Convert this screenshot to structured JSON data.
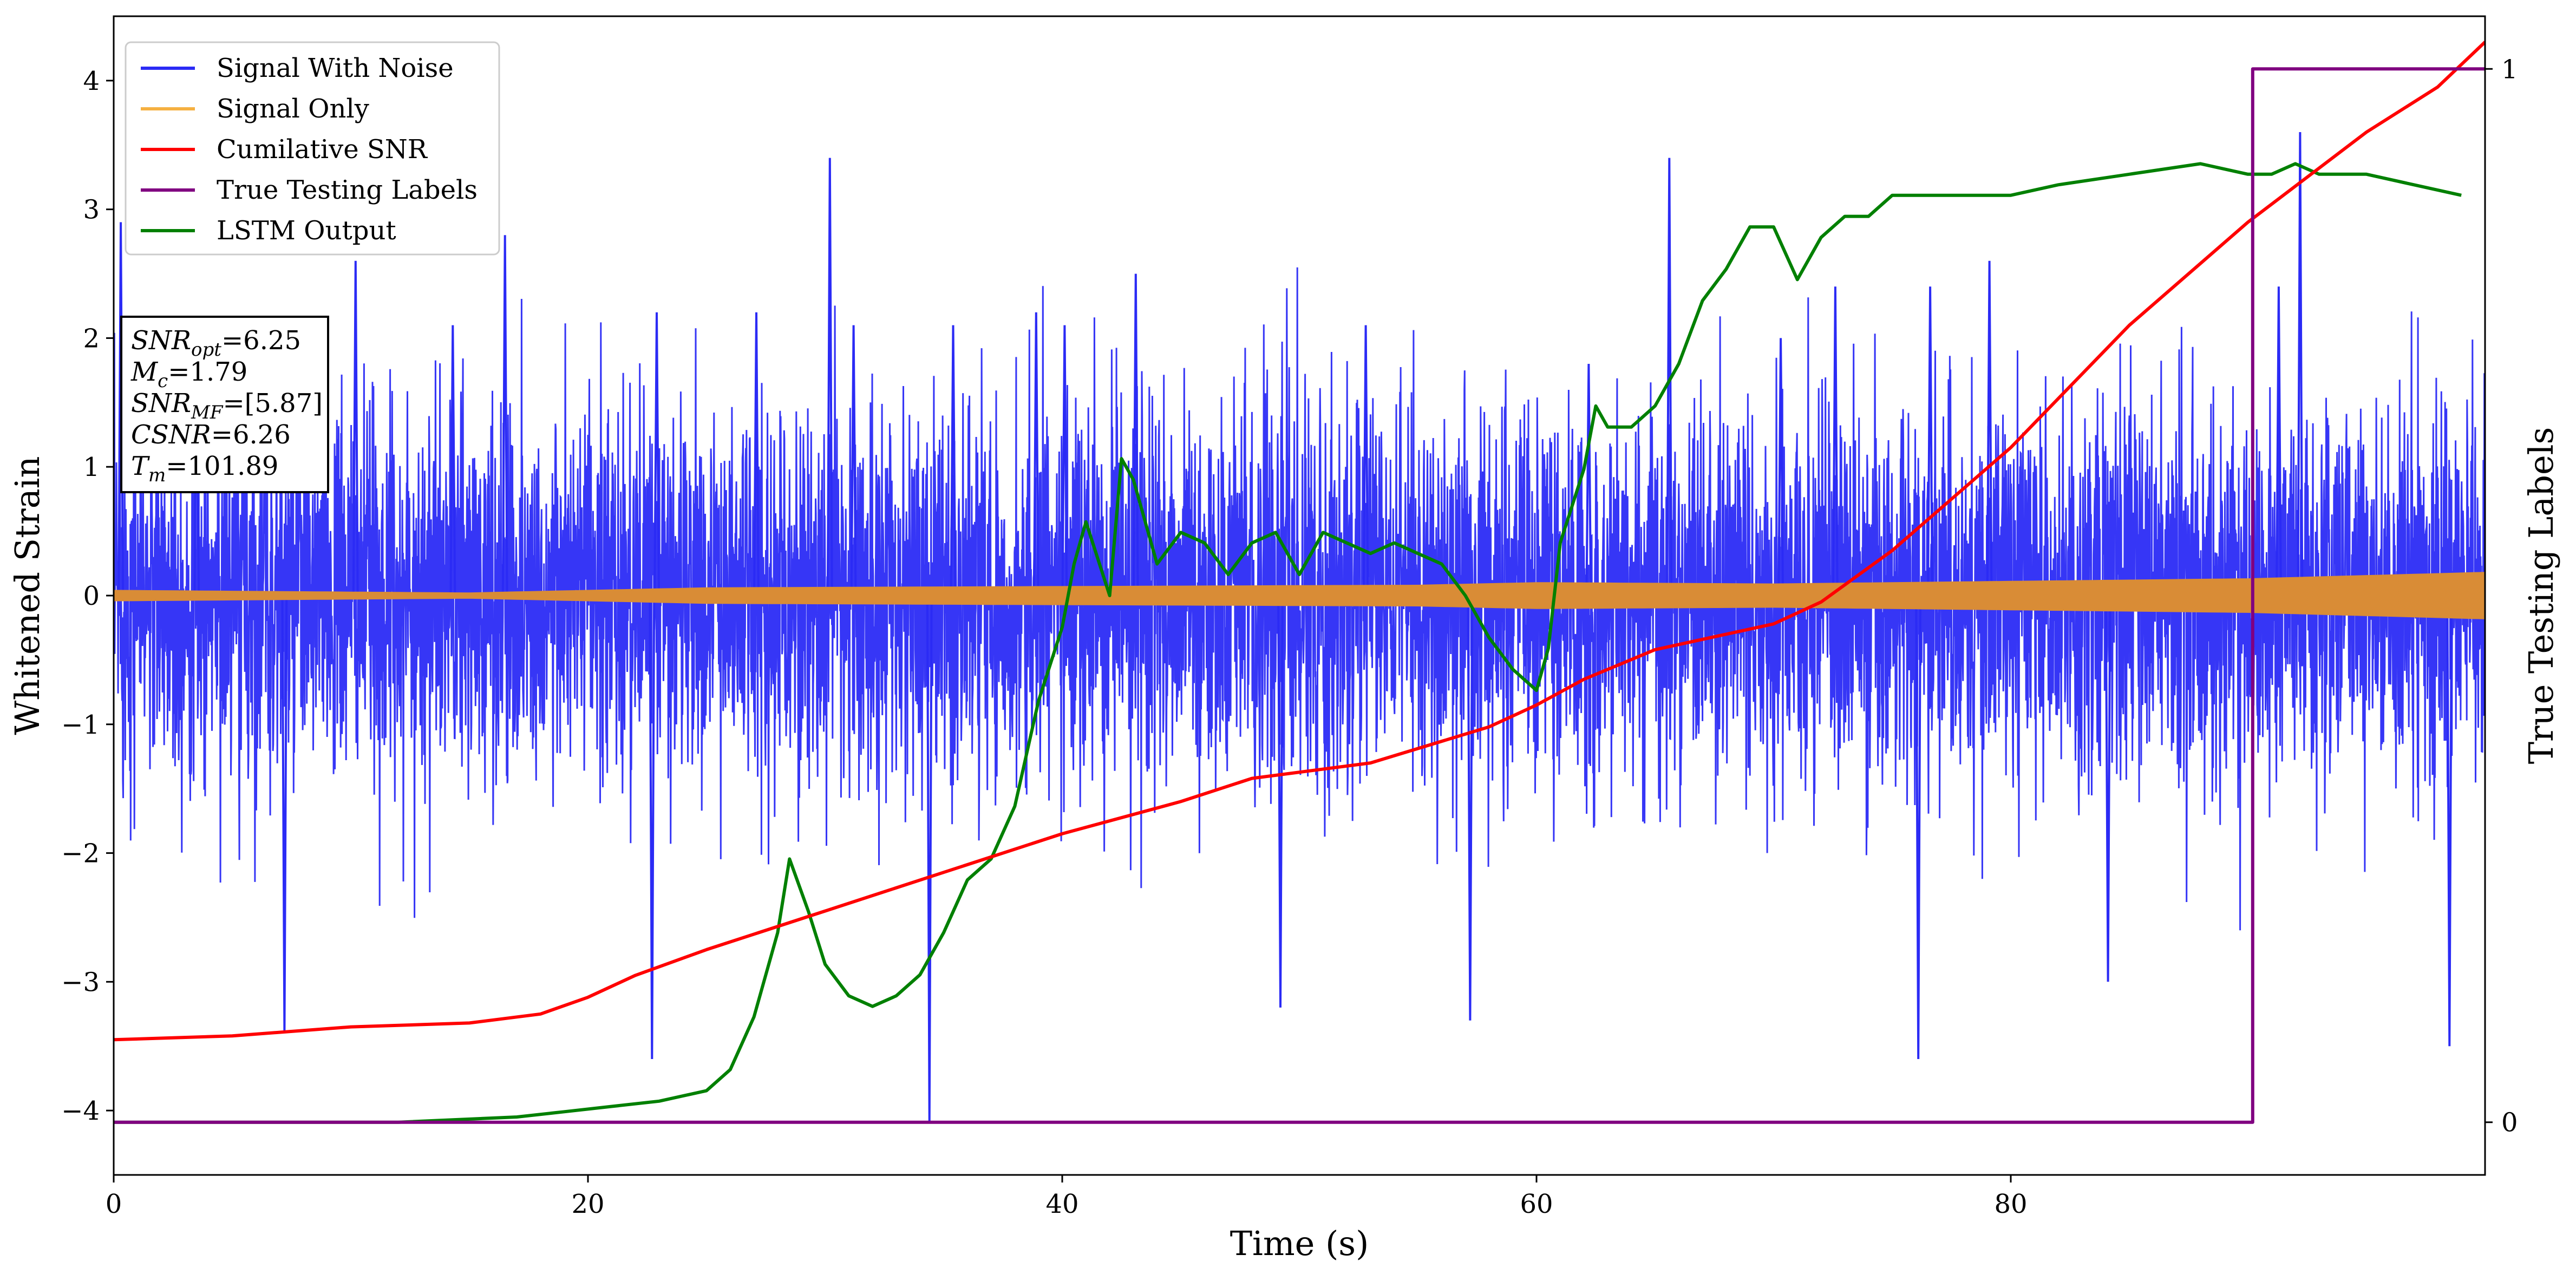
{
  "chart_data": {
    "type": "line",
    "xlabel": "Time (s)",
    "ylabel": "Whitened Strain",
    "y2label": "True Testing Labels",
    "xlim": [
      0,
      100
    ],
    "ylim": [
      -4.5,
      4.5
    ],
    "y2lim": [
      -0.05,
      1.05
    ],
    "x_ticks": [
      0,
      20,
      40,
      60,
      80
    ],
    "y_ticks": [
      -4,
      -3,
      -2,
      -1,
      0,
      1,
      2,
      3,
      4
    ],
    "y2_ticks": [
      0,
      1
    ],
    "legend_position": "upper-left",
    "legend": [
      "Signal With Noise",
      "Signal Only",
      "Cumilative SNR",
      "True Testing Labels",
      "LSTM Output"
    ],
    "annotation": {
      "lines": [
        {
          "name": "SNR",
          "sub": "opt",
          "value": "=6.25"
        },
        {
          "name": "M",
          "sub": "c",
          "value": "=1.79"
        },
        {
          "name": "SNR",
          "sub": "MF",
          "value": "=[5.87]"
        },
        {
          "name": "CSNR",
          "sub": "",
          "value": "=6.26"
        },
        {
          "name": "T",
          "sub": "m",
          "value": "=101.89"
        }
      ]
    },
    "series": [
      {
        "name": "Signal With Noise",
        "color": "#2b2bf5",
        "axis": "left",
        "kind": "noise",
        "std": 0.72,
        "peaks": [
          [
            0.3,
            2.9
          ],
          [
            3.5,
            2.0
          ],
          [
            7.2,
            -3.4
          ],
          [
            10.2,
            2.6
          ],
          [
            14.3,
            2.1
          ],
          [
            16.5,
            2.8
          ],
          [
            22.7,
            -3.6
          ],
          [
            22.9,
            2.2
          ],
          [
            27.1,
            2.2
          ],
          [
            30.2,
            3.4
          ],
          [
            31.2,
            2.1
          ],
          [
            34.4,
            -4.1
          ],
          [
            35.4,
            2.1
          ],
          [
            38.9,
            2.2
          ],
          [
            40.1,
            2.1
          ],
          [
            43.1,
            2.5
          ],
          [
            49.2,
            -3.2
          ],
          [
            52.8,
            2.1
          ],
          [
            57.2,
            -3.3
          ],
          [
            62.2,
            1.8
          ],
          [
            65.6,
            3.4
          ],
          [
            70.3,
            2.0
          ],
          [
            72.6,
            2.4
          ],
          [
            76.1,
            -3.6
          ],
          [
            76.6,
            2.4
          ],
          [
            79.1,
            2.6
          ],
          [
            84.1,
            -3.0
          ],
          [
            91.3,
            2.4
          ],
          [
            92.2,
            3.6
          ],
          [
            98.5,
            -3.5
          ]
        ]
      },
      {
        "name": "Signal Only",
        "color": "#f5b041",
        "fill_color": "#d98c36",
        "axis": "left",
        "kind": "band",
        "envelope": [
          [
            0,
            0.04
          ],
          [
            15,
            0.02
          ],
          [
            25,
            0.06
          ],
          [
            40,
            0.07
          ],
          [
            55,
            0.08
          ],
          [
            60,
            0.1
          ],
          [
            70,
            0.09
          ],
          [
            80,
            0.11
          ],
          [
            90,
            0.13
          ],
          [
            100,
            0.18
          ]
        ]
      },
      {
        "name": "Cumilative SNR",
        "color": "#ff0000",
        "axis": "left",
        "x": [
          0,
          5,
          10,
          15,
          18,
          20,
          22,
          25,
          30,
          35,
          40,
          45,
          48,
          53,
          58,
          60,
          62,
          65,
          68,
          70,
          72,
          75,
          80,
          85,
          90,
          95,
          98,
          100
        ],
        "values": [
          -3.45,
          -3.42,
          -3.35,
          -3.32,
          -3.25,
          -3.12,
          -2.95,
          -2.75,
          -2.45,
          -2.15,
          -1.85,
          -1.6,
          -1.42,
          -1.3,
          -1.02,
          -0.85,
          -0.65,
          -0.42,
          -0.3,
          -0.22,
          -0.05,
          0.35,
          1.15,
          2.1,
          2.9,
          3.6,
          3.95,
          4.3
        ]
      },
      {
        "name": "True Testing Labels",
        "color": "#800080",
        "axis": "right",
        "x": [
          0,
          90.2,
          90.2,
          100
        ],
        "values": [
          0,
          0,
          1,
          1
        ]
      },
      {
        "name": "LSTM Output",
        "color": "#008000",
        "axis": "right",
        "x": [
          0,
          12,
          17,
          19,
          21,
          23,
          25,
          26,
          27,
          28,
          28.5,
          29.3,
          30,
          31,
          32,
          33,
          34,
          35,
          36,
          37,
          38,
          39,
          40,
          40.5,
          41,
          42,
          42.5,
          43,
          44,
          45,
          46,
          47,
          48,
          49,
          50,
          51,
          52,
          53,
          54,
          55,
          56,
          57,
          58,
          59,
          60,
          60.5,
          61,
          62,
          62.5,
          63,
          64,
          65,
          66,
          67,
          68,
          69,
          70,
          71,
          72,
          73,
          74,
          75,
          76,
          77,
          78,
          80,
          82,
          85,
          88,
          90,
          91,
          92,
          93,
          95,
          97,
          99
        ],
        "values": [
          0,
          0,
          0.005,
          0.01,
          0.015,
          0.02,
          0.03,
          0.05,
          0.1,
          0.18,
          0.25,
          0.2,
          0.15,
          0.12,
          0.11,
          0.12,
          0.14,
          0.18,
          0.23,
          0.25,
          0.3,
          0.4,
          0.47,
          0.53,
          0.57,
          0.5,
          0.63,
          0.61,
          0.53,
          0.56,
          0.55,
          0.52,
          0.55,
          0.56,
          0.52,
          0.56,
          0.55,
          0.54,
          0.55,
          0.54,
          0.53,
          0.5,
          0.46,
          0.43,
          0.41,
          0.45,
          0.55,
          0.62,
          0.68,
          0.66,
          0.66,
          0.68,
          0.72,
          0.78,
          0.81,
          0.85,
          0.85,
          0.8,
          0.84,
          0.86,
          0.86,
          0.88,
          0.88,
          0.88,
          0.88,
          0.88,
          0.89,
          0.9,
          0.91,
          0.9,
          0.9,
          0.91,
          0.9,
          0.9,
          0.89,
          0.88
        ]
      }
    ]
  }
}
